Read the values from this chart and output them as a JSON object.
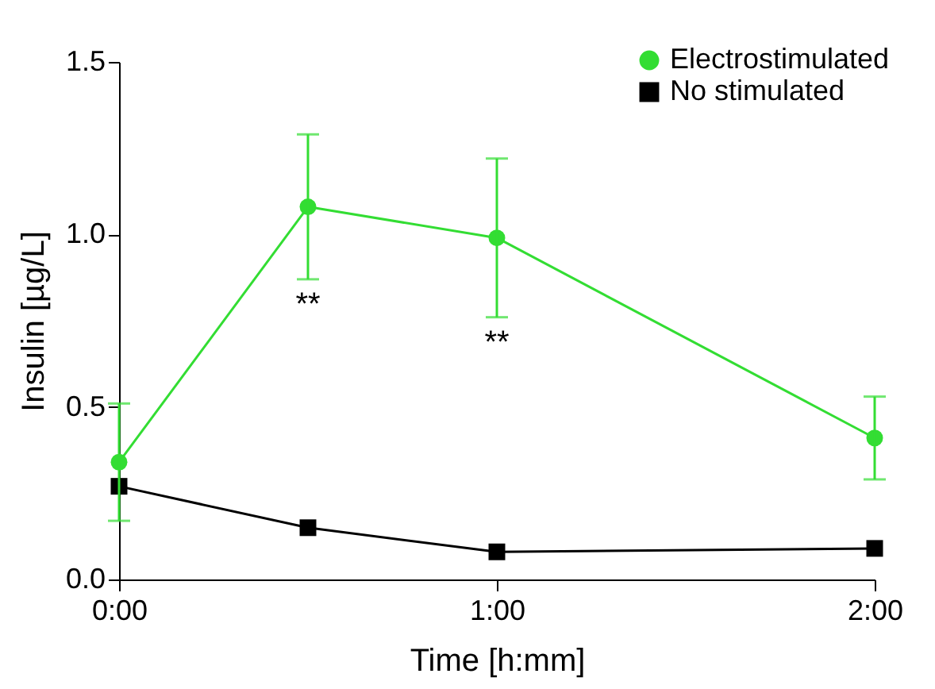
{
  "chart_data": {
    "type": "line",
    "xlabel": "Time [h:mm]",
    "ylabel": "Insulin [µg/L]",
    "x": [
      0,
      0.5,
      1,
      2
    ],
    "series": [
      {
        "name": "Electrostimulated",
        "color": "#33dd33",
        "marker": "circle",
        "values": [
          0.34,
          1.08,
          0.99,
          0.41
        ],
        "errors": [
          0.17,
          0.21,
          0.23,
          0.12
        ]
      },
      {
        "name": "No stimulated",
        "color": "#000000",
        "marker": "square",
        "values": [
          0.27,
          0.15,
          0.08,
          0.09
        ]
      }
    ],
    "xlim": [
      0,
      2
    ],
    "xticks": [
      {
        "value": 0,
        "label": "0:00"
      },
      {
        "value": 1,
        "label": "1:00"
      },
      {
        "value": 2,
        "label": "2:00"
      }
    ],
    "ylim": [
      0,
      1.5
    ],
    "yticks": [
      {
        "value": 0,
        "label": "0.0"
      },
      0.5,
      {
        "value": 1,
        "label": "1.0"
      },
      1.5
    ],
    "annotations": [
      {
        "text": "**",
        "x": 0.5,
        "y": 0.87
      },
      {
        "text": "**",
        "x": 1,
        "y": 0.76
      }
    ],
    "legend": "top right",
    "grid": false,
    "line_style": "solid"
  }
}
